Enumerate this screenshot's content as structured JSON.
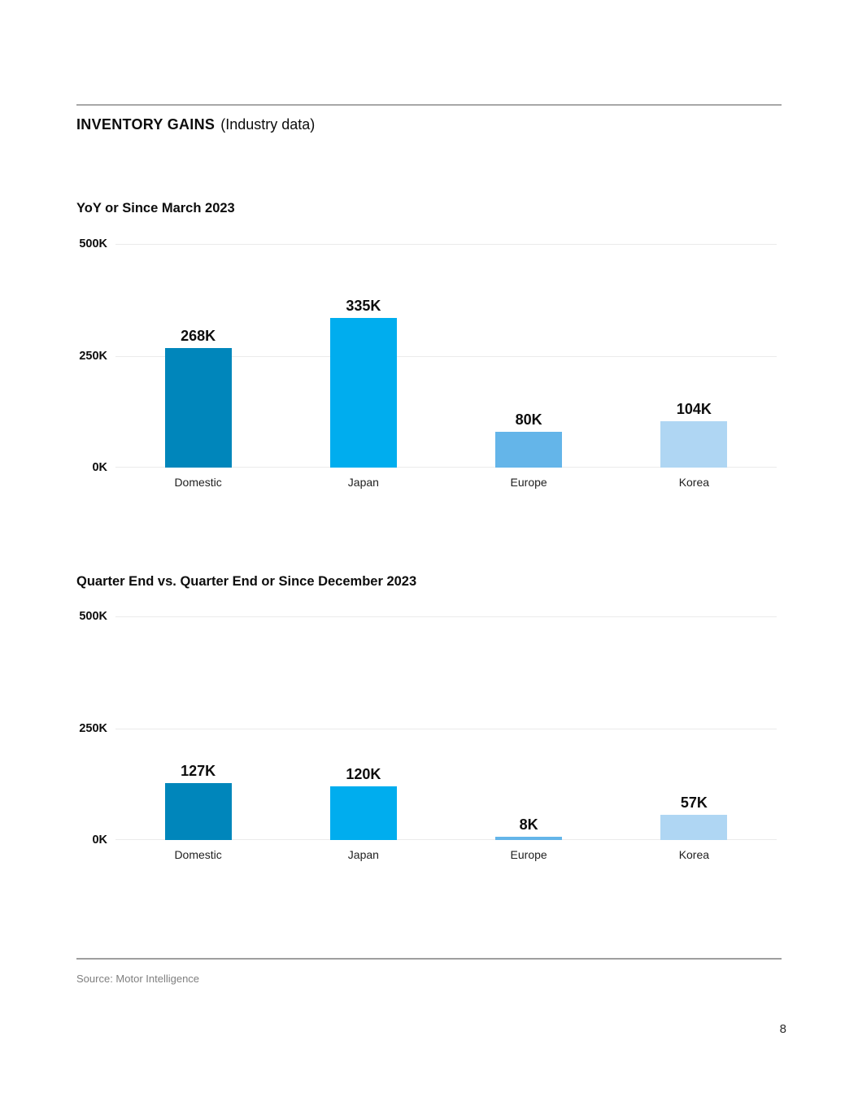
{
  "page": {
    "title_bold": "INVENTORY GAINS",
    "title_regular": "(Industry data)",
    "source": "Source: Motor Intelligence",
    "page_number": "8"
  },
  "colors": {
    "domestic_bar": "#0086bb",
    "japan_bar": "#00adee",
    "europe_bar": "#64b5e9",
    "korea_bar": "#afd6f3",
    "gridline": "#ebebeb",
    "divider": "#a8a8a8"
  },
  "chart_data": [
    {
      "type": "bar",
      "title": "YoY or Since March 2023",
      "categories": [
        "Domestic",
        "Japan",
        "Europe",
        "Korea"
      ],
      "values": [
        268,
        335,
        80,
        104
      ],
      "value_labels": [
        "268K",
        "335K",
        "80K",
        "104K"
      ],
      "unit": "K",
      "ylim": [
        0,
        500
      ],
      "yticks": [
        "500K",
        "250K",
        "0K"
      ],
      "grid": true,
      "legend": "none",
      "bar_colors": [
        "#0086bb",
        "#00adee",
        "#64b5e9",
        "#afd6f3"
      ]
    },
    {
      "type": "bar",
      "title": "Quarter End vs. Quarter End or Since December 2023",
      "categories": [
        "Domestic",
        "Japan",
        "Europe",
        "Korea"
      ],
      "values": [
        127,
        120,
        8,
        57
      ],
      "value_labels": [
        "127K",
        "120K",
        "8K",
        "57K"
      ],
      "unit": "K",
      "ylim": [
        0,
        500
      ],
      "yticks": [
        "500K",
        "250K",
        "0K"
      ],
      "grid": true,
      "legend": "none",
      "bar_colors": [
        "#0086bb",
        "#00adee",
        "#64b5e9",
        "#afd6f3"
      ]
    }
  ]
}
